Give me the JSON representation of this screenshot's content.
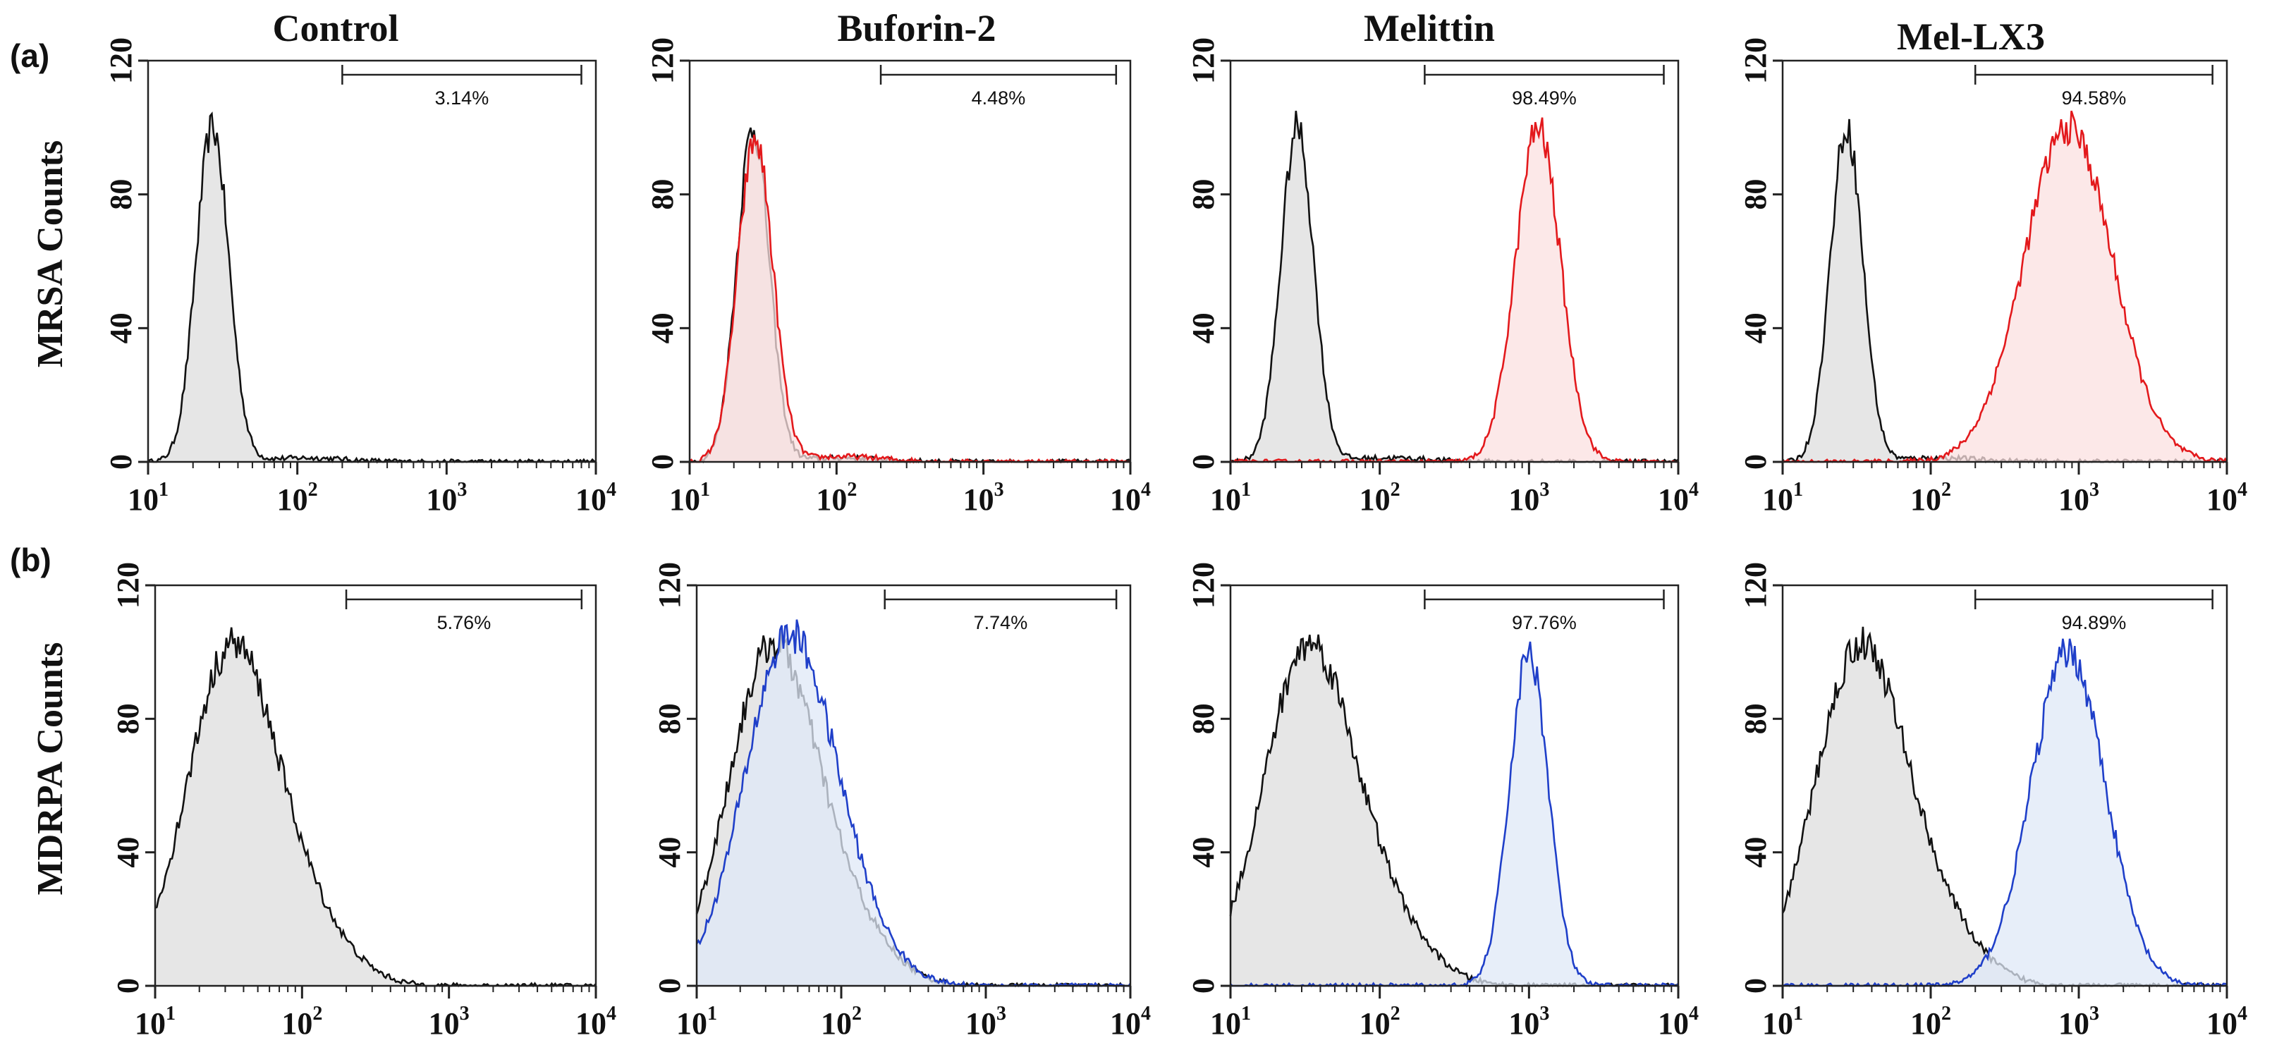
{
  "figure": {
    "panel_labels": [
      "(a)",
      "(b)"
    ],
    "column_titles": [
      "Control",
      "Buforin-2",
      "Melittin",
      "Mel-LX3"
    ],
    "row_ylabels": [
      "MRSA Counts",
      "MDRPA Counts"
    ],
    "colors": {
      "control": "#111111",
      "control_fill": "#e6e6e6",
      "mrsa": "#e3191c",
      "mrsa_fill": "#fbe0e0",
      "mdrpa": "#1f3fc9",
      "mdrpa_fill": "#dfe8f7",
      "overlap_fill": "#d6dde6"
    }
  },
  "chart_data": [
    {
      "type": "area",
      "row": "(a)",
      "title": "Control",
      "ylabel": "MRSA Counts",
      "xscale": "log",
      "xlim": [
        10,
        10000
      ],
      "ylim": [
        0,
        120
      ],
      "yticks": [
        0,
        40,
        80,
        120
      ],
      "xtick_labels": [
        [
          "10",
          "1"
        ],
        [
          "10",
          "2"
        ],
        [
          "10",
          "3"
        ],
        [
          "10",
          "4"
        ]
      ],
      "gate": {
        "range": [
          200,
          8000
        ],
        "label": "3.14%"
      },
      "series": [
        {
          "name": "Control",
          "color": "#111111",
          "peak_x": 27,
          "peak_y": 100,
          "width": 0.11,
          "tail": 1.2
        }
      ]
    },
    {
      "type": "area",
      "row": "(a)",
      "title": "Buforin-2",
      "ylabel": "MRSA Counts",
      "xscale": "log",
      "xlim": [
        10,
        10000
      ],
      "ylim": [
        0,
        120
      ],
      "yticks": [
        0,
        40,
        80,
        120
      ],
      "xtick_labels": [
        [
          "10",
          "1"
        ],
        [
          "10",
          "2"
        ],
        [
          "10",
          "3"
        ],
        [
          "10",
          "4"
        ]
      ],
      "gate": {
        "range": [
          200,
          8000
        ],
        "label": "4.48%"
      },
      "series": [
        {
          "name": "Control",
          "color": "#111111",
          "peak_x": 27,
          "peak_y": 100,
          "width": 0.11,
          "tail": 1.2
        },
        {
          "name": "Buforin-2",
          "color": "#e3191c",
          "peak_x": 28,
          "peak_y": 96,
          "width": 0.12,
          "tail": 1.6
        }
      ]
    },
    {
      "type": "area",
      "row": "(a)",
      "title": "Melittin",
      "ylabel": "MRSA Counts",
      "xscale": "log",
      "xlim": [
        10,
        10000
      ],
      "ylim": [
        0,
        120
      ],
      "yticks": [
        0,
        40,
        80,
        120
      ],
      "xtick_labels": [
        [
          "10",
          "1"
        ],
        [
          "10",
          "2"
        ],
        [
          "10",
          "3"
        ],
        [
          "10",
          "4"
        ]
      ],
      "gate": {
        "range": [
          200,
          8000
        ],
        "label": "98.49%"
      },
      "series": [
        {
          "name": "Control",
          "color": "#111111",
          "peak_x": 28,
          "peak_y": 100,
          "width": 0.11,
          "tail": 1.2
        },
        {
          "name": "Melittin",
          "color": "#e3191c",
          "peak_x": 1150,
          "peak_y": 100,
          "width": 0.15,
          "tail": 0
        }
      ]
    },
    {
      "type": "area",
      "row": "(a)",
      "title": "Mel-LX3",
      "ylabel": "MRSA Counts",
      "xscale": "log",
      "xlim": [
        10,
        10000
      ],
      "ylim": [
        0,
        120
      ],
      "yticks": [
        0,
        40,
        80,
        120
      ],
      "xtick_labels": [
        [
          "10",
          "1"
        ],
        [
          "10",
          "2"
        ],
        [
          "10",
          "3"
        ],
        [
          "10",
          "4"
        ]
      ],
      "gate": {
        "range": [
          200,
          8000
        ],
        "label": "94.58%"
      },
      "series": [
        {
          "name": "Control",
          "color": "#111111",
          "peak_x": 27,
          "peak_y": 100,
          "width": 0.11,
          "tail": 1.2
        },
        {
          "name": "Mel-LX3",
          "color": "#e3191c",
          "peak_x": 850,
          "peak_y": 100,
          "width": 0.3,
          "tail": 0
        }
      ]
    },
    {
      "type": "area",
      "row": "(b)",
      "title": "Control",
      "ylabel": "MDRPA Counts",
      "xscale": "log",
      "xlim": [
        10,
        10000
      ],
      "ylim": [
        0,
        120
      ],
      "yticks": [
        0,
        40,
        80,
        120
      ],
      "xtick_labels": [
        [
          "10",
          "1"
        ],
        [
          "10",
          "2"
        ],
        [
          "10",
          "3"
        ],
        [
          "10",
          "4"
        ]
      ],
      "gate": {
        "range": [
          200,
          8000
        ],
        "label": "5.76%"
      },
      "series": [
        {
          "name": "Control",
          "color": "#111111",
          "peak_x": 33,
          "peak_y": 100,
          "width": 0.3,
          "tail": 16
        }
      ]
    },
    {
      "type": "area",
      "row": "(b)",
      "title": "Buforin-2",
      "ylabel": "MDRPA Counts",
      "xscale": "log",
      "xlim": [
        10,
        10000
      ],
      "ylim": [
        0,
        120
      ],
      "yticks": [
        0,
        40,
        80,
        120
      ],
      "xtick_labels": [
        [
          "10",
          "1"
        ],
        [
          "10",
          "2"
        ],
        [
          "10",
          "3"
        ],
        [
          "10",
          "4"
        ]
      ],
      "gate": {
        "range": [
          200,
          8000
        ],
        "label": "7.74%"
      },
      "series": [
        {
          "name": "Control",
          "color": "#111111",
          "peak_x": 33,
          "peak_y": 100,
          "width": 0.3,
          "tail": 16
        },
        {
          "name": "Buforin-2",
          "color": "#1f3fc9",
          "peak_x": 42,
          "peak_y": 100,
          "width": 0.3,
          "tail": 16
        }
      ]
    },
    {
      "type": "area",
      "row": "(b)",
      "title": "Melittin",
      "ylabel": "MDRPA Counts",
      "xscale": "log",
      "xlim": [
        10,
        10000
      ],
      "ylim": [
        0,
        120
      ],
      "yticks": [
        0,
        40,
        80,
        120
      ],
      "xtick_labels": [
        [
          "10",
          "1"
        ],
        [
          "10",
          "2"
        ],
        [
          "10",
          "3"
        ],
        [
          "10",
          "4"
        ]
      ],
      "gate": {
        "range": [
          200,
          8000
        ],
        "label": "97.76%"
      },
      "series": [
        {
          "name": "Control",
          "color": "#111111",
          "peak_x": 33,
          "peak_y": 100,
          "width": 0.3,
          "tail": 16
        },
        {
          "name": "Melittin",
          "color": "#1f3fc9",
          "peak_x": 1000,
          "peak_y": 100,
          "width": 0.13,
          "tail": 0
        }
      ]
    },
    {
      "type": "area",
      "row": "(b)",
      "title": "Mel-LX3",
      "ylabel": "MDRPA Counts",
      "xscale": "log",
      "xlim": [
        10,
        10000
      ],
      "ylim": [
        0,
        120
      ],
      "yticks": [
        0,
        40,
        80,
        120
      ],
      "xtick_labels": [
        [
          "10",
          "1"
        ],
        [
          "10",
          "2"
        ],
        [
          "10",
          "3"
        ],
        [
          "10",
          "4"
        ]
      ],
      "gate": {
        "range": [
          200,
          8000
        ],
        "label": "94.89%"
      },
      "series": [
        {
          "name": "Control",
          "color": "#111111",
          "peak_x": 33,
          "peak_y": 100,
          "width": 0.3,
          "tail": 16
        },
        {
          "name": "Mel-LX3",
          "color": "#1f3fc9",
          "peak_x": 850,
          "peak_y": 100,
          "width": 0.25,
          "tail": 0
        }
      ]
    }
  ]
}
